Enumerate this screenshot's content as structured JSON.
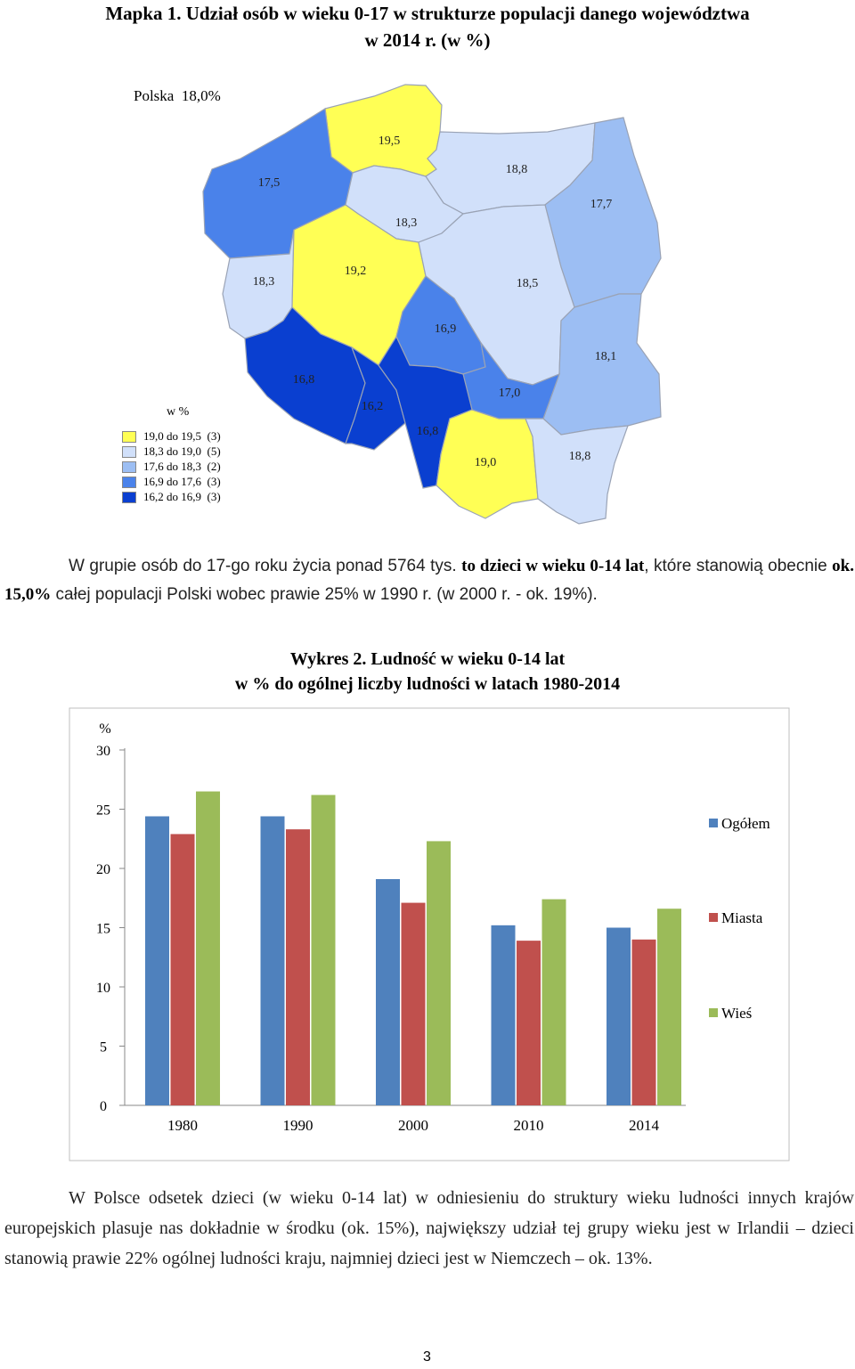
{
  "map": {
    "title_line1": "Mapka 1. Udział osób w wieku 0-17 w strukturze populacji danego województwa",
    "title_line2": "w 2014 r. (w %)",
    "polska_label": "Polska",
    "polska_value": "18,0%",
    "legend": {
      "title": "w %",
      "items": [
        {
          "label": "19,0 do 19,5",
          "count": "(3)",
          "color": "#ffff55"
        },
        {
          "label": "18,3 do 19,0",
          "count": "(5)",
          "color": "#d1e0fa"
        },
        {
          "label": "17,6 do 18,3",
          "count": "(2)",
          "color": "#9cbef3"
        },
        {
          "label": "16,9 do 17,6",
          "count": "(3)",
          "color": "#4a82ea"
        },
        {
          "label": "16,2 do 16,9",
          "count": "(3)",
          "color": "#0a3fd0"
        }
      ]
    },
    "regions": [
      {
        "value": "19,5",
        "color": "#ffff55"
      },
      {
        "value": "17,5",
        "color": "#4a82ea"
      },
      {
        "value": "18,8",
        "color": "#d1e0fa"
      },
      {
        "value": "17,7",
        "color": "#9cbef3"
      },
      {
        "value": "18,3",
        "color": "#d1e0fa"
      },
      {
        "value": "18,3",
        "color": "#d1e0fa"
      },
      {
        "value": "19,2",
        "color": "#ffff55"
      },
      {
        "value": "18,5",
        "color": "#d1e0fa"
      },
      {
        "value": "16,9",
        "color": "#4a82ea"
      },
      {
        "value": "18,1",
        "color": "#9cbef3"
      },
      {
        "value": "16,8",
        "color": "#0a3fd0"
      },
      {
        "value": "16,2",
        "color": "#0a3fd0"
      },
      {
        "value": "17,0",
        "color": "#4a82ea"
      },
      {
        "value": "16,8",
        "color": "#0a3fd0"
      },
      {
        "value": "19,0",
        "color": "#ffff55"
      },
      {
        "value": "18,8",
        "color": "#d1e0fa"
      }
    ]
  },
  "paragraph1": {
    "t1": "W grupie osób do 17-go roku życia ponad 5764 tys. ",
    "b1": "to dzieci w wieku 0-14 lat",
    "t2": ", które stanowią obecnie ",
    "b2": "ok. 15,0%",
    "t3": " całej populacji Polski wobec prawie 25% w 1990 r. (w 2000 r. - ok. 19%)."
  },
  "chart_title": {
    "line1": "Wykres 2. Ludność w wieku 0-14 lat",
    "line2": "w % do ogólnej liczby ludności w latach 1980-2014"
  },
  "chart_data": {
    "type": "bar",
    "ylabel": "%",
    "ylim": [
      0,
      30
    ],
    "yticks": [
      "0",
      "5",
      "10",
      "15",
      "20",
      "25",
      "30"
    ],
    "categories": [
      "1980",
      "1990",
      "2000",
      "2010",
      "2014"
    ],
    "series": [
      {
        "name": "Ogółem",
        "color": "#4f81bd",
        "values": [
          24.4,
          24.4,
          19.1,
          15.2,
          15.0
        ]
      },
      {
        "name": "Miasta",
        "color": "#c0504d",
        "values": [
          22.9,
          23.3,
          17.1,
          13.9,
          14.0
        ]
      },
      {
        "name": "Wieś",
        "color": "#9bbb59",
        "values": [
          26.5,
          26.2,
          22.3,
          17.4,
          16.6
        ]
      }
    ],
    "legend_position": "right",
    "grid": false
  },
  "paragraph2": "W Polsce odsetek dzieci (w wieku 0-14 lat) w odniesieniu do struktury wieku ludności innych krajów europejskich plasuje nas dokładnie w środku (ok. 15%), największy udział tej grupy wieku jest w Irlandii – dzieci stanowią prawie 22% ogólnej ludności kraju, najmniej dzieci jest w Niemczech – ok. 13%.",
  "page_number": "3"
}
